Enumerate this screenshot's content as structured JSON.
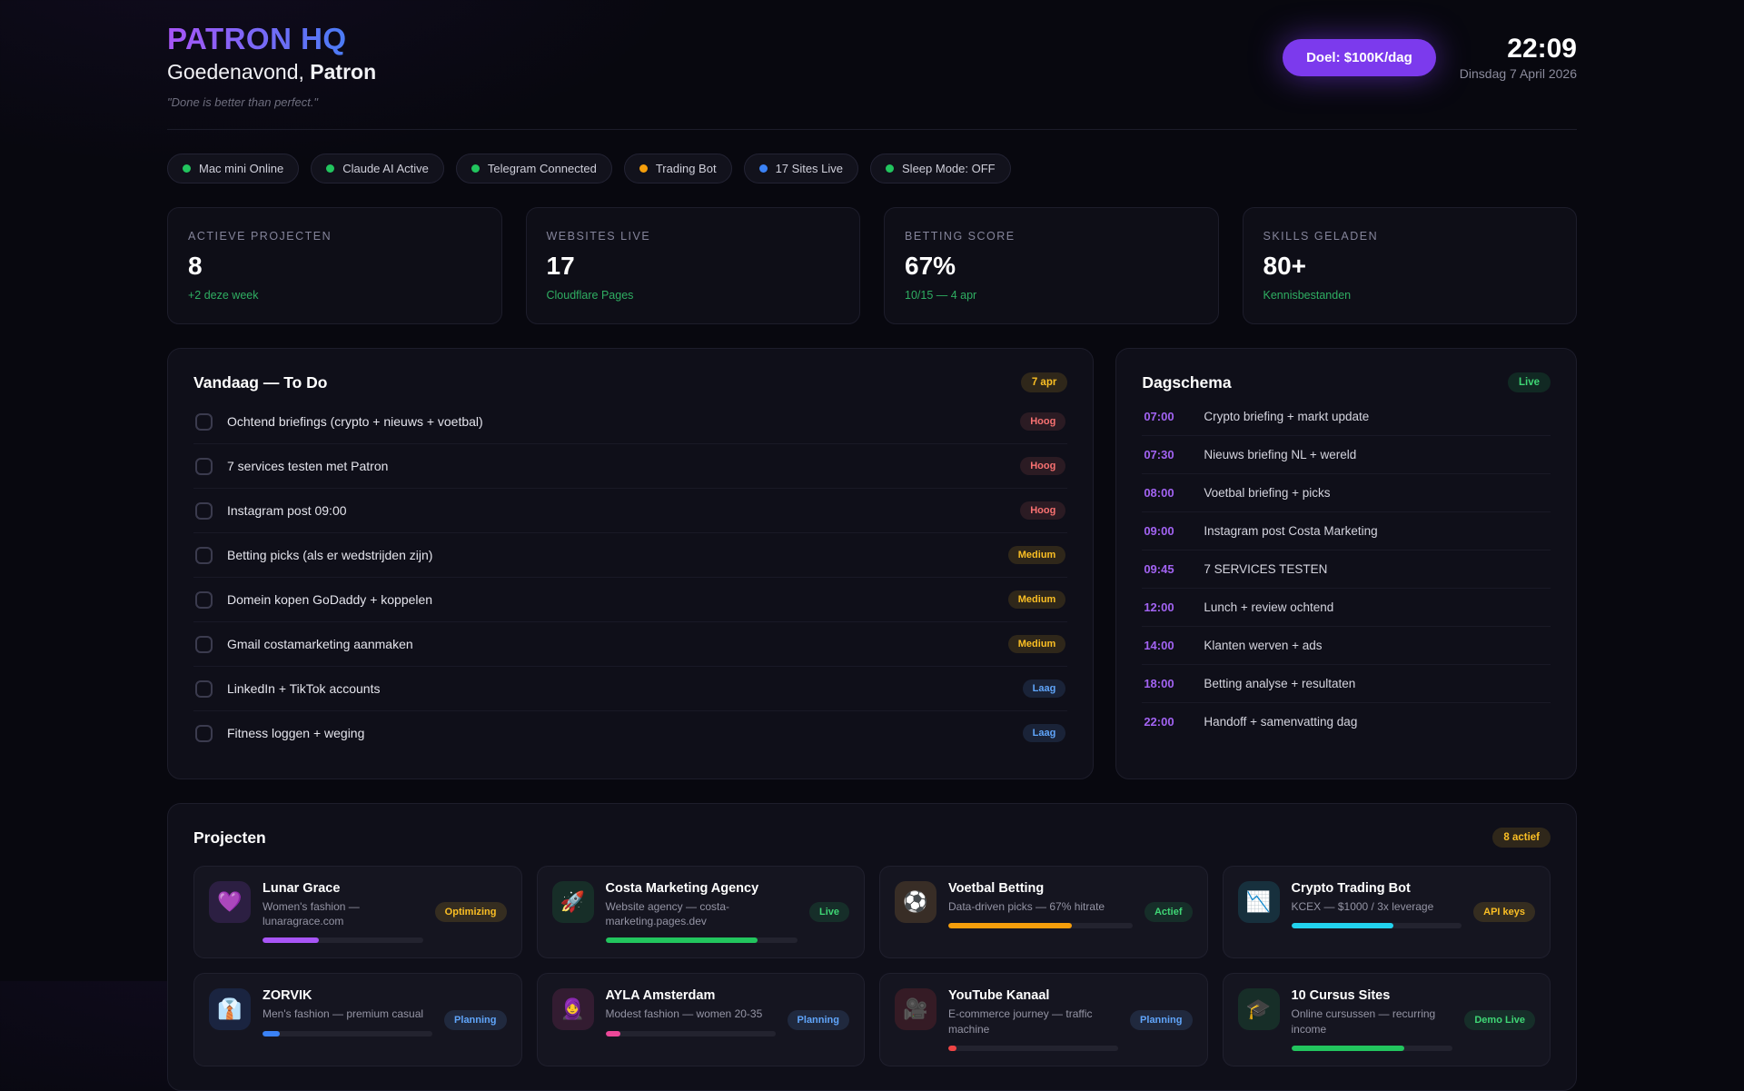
{
  "header": {
    "app_title": "PATRON HQ",
    "greeting_prefix": "Goedenavond, ",
    "greeting_name": "Patron",
    "quote": "\"Done is better than perfect.\"",
    "goal_button": "Doel: $100K/dag",
    "time": "22:09",
    "date": "Dinsdag 7 April 2026"
  },
  "status_pills": [
    {
      "label": "Mac mini Online",
      "color": "#22c55e"
    },
    {
      "label": "Claude AI Active",
      "color": "#22c55e"
    },
    {
      "label": "Telegram Connected",
      "color": "#22c55e"
    },
    {
      "label": "Trading Bot",
      "color": "#f59e0b"
    },
    {
      "label": "17 Sites Live",
      "color": "#3b82f6"
    },
    {
      "label": "Sleep Mode: OFF",
      "color": "#22c55e"
    }
  ],
  "stats": [
    {
      "label": "ACTIEVE PROJECTEN",
      "value": "8",
      "sub": "+2 deze week"
    },
    {
      "label": "WEBSITES LIVE",
      "value": "17",
      "sub": "Cloudflare Pages"
    },
    {
      "label": "BETTING SCORE",
      "value": "67%",
      "sub": "10/15 — 4 apr"
    },
    {
      "label": "SKILLS GELADEN",
      "value": "80+",
      "sub": "Kennisbestanden"
    }
  ],
  "todo": {
    "title": "Vandaag — To Do",
    "date_badge": "7 apr",
    "items": [
      {
        "label": "Ochtend briefings (crypto + nieuws + voetbal)",
        "priority": "Hoog",
        "priority_class": "badge-red"
      },
      {
        "label": "7 services testen met Patron",
        "priority": "Hoog",
        "priority_class": "badge-red"
      },
      {
        "label": "Instagram post 09:00",
        "priority": "Hoog",
        "priority_class": "badge-red"
      },
      {
        "label": "Betting picks (als er wedstrijden zijn)",
        "priority": "Medium",
        "priority_class": "badge-amber"
      },
      {
        "label": "Domein kopen GoDaddy + koppelen",
        "priority": "Medium",
        "priority_class": "badge-amber"
      },
      {
        "label": "Gmail costamarketing aanmaken",
        "priority": "Medium",
        "priority_class": "badge-amber"
      },
      {
        "label": "LinkedIn + TikTok accounts",
        "priority": "Laag",
        "priority_class": "badge-blue"
      },
      {
        "label": "Fitness loggen + weging",
        "priority": "Laag",
        "priority_class": "badge-blue"
      }
    ]
  },
  "schedule": {
    "title": "Dagschema",
    "badge": "Live",
    "items": [
      {
        "time": "07:00",
        "label": "Crypto briefing + markt update"
      },
      {
        "time": "07:30",
        "label": "Nieuws briefing NL + wereld"
      },
      {
        "time": "08:00",
        "label": "Voetbal briefing + picks"
      },
      {
        "time": "09:00",
        "label": "Instagram post Costa Marketing"
      },
      {
        "time": "09:45",
        "label": "7 SERVICES TESTEN"
      },
      {
        "time": "12:00",
        "label": "Lunch + review ochtend"
      },
      {
        "time": "14:00",
        "label": "Klanten werven + ads"
      },
      {
        "time": "18:00",
        "label": "Betting analyse + resultaten"
      },
      {
        "time": "22:00",
        "label": "Handoff + samenvatting dag"
      }
    ]
  },
  "projects": {
    "title": "Projecten",
    "badge": "8 actief",
    "cards": [
      {
        "name": "Lunar Grace",
        "desc": "Women's fashion — lunaragrace.com",
        "status": "Optimizing",
        "status_class": "badge-amber",
        "icon": "💜",
        "icon_name": "purple-heart-icon",
        "icon_bg": "rgba(168,85,247,0.16)",
        "progress": 35,
        "bar_color": "#a855f7"
      },
      {
        "name": "Costa Marketing Agency",
        "desc": "Website agency — costa-marketing.pages.dev",
        "status": "Live",
        "status_class": "badge-green",
        "icon": "🚀",
        "icon_name": "rocket-icon",
        "icon_bg": "rgba(34,197,94,0.14)",
        "progress": 79,
        "bar_color": "#22c55e"
      },
      {
        "name": "Voetbal Betting",
        "desc": "Data-driven picks — 67% hitrate",
        "status": "Actief",
        "status_class": "badge-green",
        "icon": "⚽",
        "icon_name": "soccer-ball-icon",
        "icon_bg": "rgba(180,130,60,0.22)",
        "progress": 67,
        "bar_color": "#f59e0b"
      },
      {
        "name": "Crypto Trading Bot",
        "desc": "KCEX — $1000 / 3x leverage",
        "status": "API keys",
        "status_class": "badge-amber",
        "icon": "📉",
        "icon_name": "chart-down-icon",
        "icon_bg": "rgba(34,211,238,0.14)",
        "progress": 60,
        "bar_color": "#22d3ee"
      },
      {
        "name": "ZORVIK",
        "desc": "Men's fashion — premium casual",
        "status": "Planning",
        "status_class": "badge-blue",
        "icon": "👔",
        "icon_name": "necktie-icon",
        "icon_bg": "rgba(59,130,246,0.15)",
        "progress": 10,
        "bar_color": "#3b82f6"
      },
      {
        "name": "AYLA Amsterdam",
        "desc": "Modest fashion — women 20-35",
        "status": "Planning",
        "status_class": "badge-blue",
        "icon": "🧕",
        "icon_name": "headscarf-icon",
        "icon_bg": "rgba(236,72,153,0.14)",
        "progress": 9,
        "bar_color": "#ec4899"
      },
      {
        "name": "YouTube Kanaal",
        "desc": "E-commerce journey — traffic machine",
        "status": "Planning",
        "status_class": "badge-blue",
        "icon": "🎥",
        "icon_name": "movie-camera-icon",
        "icon_bg": "rgba(239,68,68,0.15)",
        "progress": 5,
        "bar_color": "#ef4444"
      },
      {
        "name": "10 Cursus Sites",
        "desc": "Online cursussen — recurring income",
        "status": "Demo Live",
        "status_class": "badge-green",
        "icon": "🎓",
        "icon_name": "graduation-cap-icon",
        "icon_bg": "rgba(34,197,94,0.14)",
        "progress": 70,
        "bar_color": "#22c55e"
      }
    ]
  }
}
